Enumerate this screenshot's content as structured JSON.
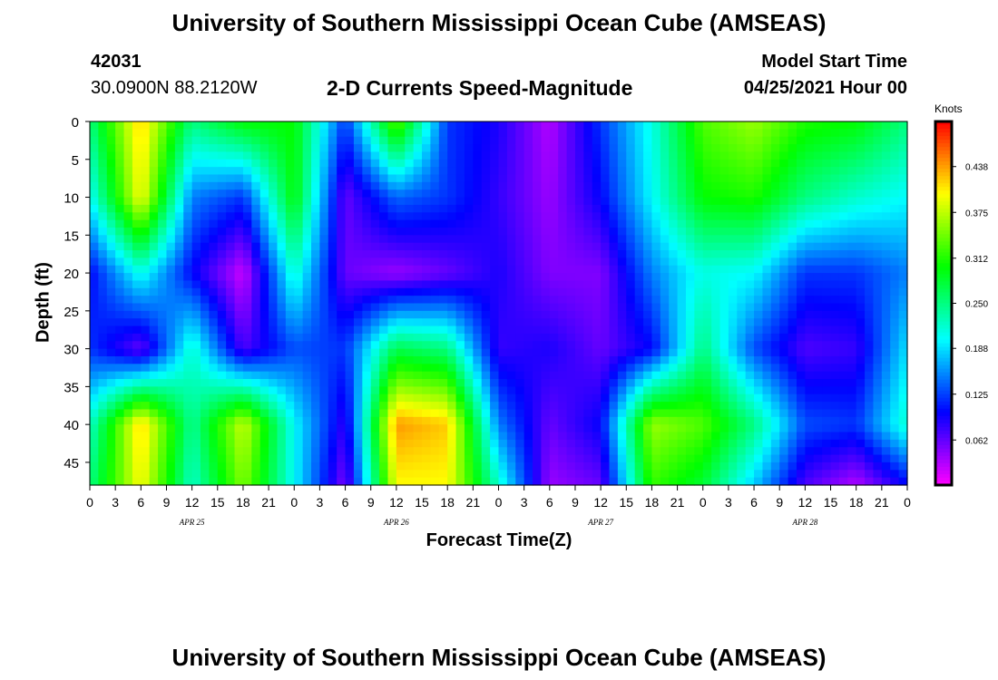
{
  "header": {
    "title": "University of Southern Mississippi Ocean Cube (AMSEAS)",
    "station_id": "42031",
    "coords": "30.0900N  88.2120W",
    "subtitle": "2-D Currents Speed-Magnitude",
    "model_start_label": "Model Start Time",
    "model_start_value": "04/25/2021 Hour 00"
  },
  "footer": {
    "title": "University of Southern Mississippi Ocean Cube (AMSEAS)"
  },
  "colorbar": {
    "unit_label": "Knots",
    "ticks": [
      "0.438",
      "0.375",
      "0.312",
      "0.250",
      "0.188",
      "0.125",
      "0.062"
    ],
    "tick_values": [
      0.438,
      0.375,
      0.312,
      0.25,
      0.188,
      0.125,
      0.062
    ],
    "range": [
      0,
      0.5
    ]
  },
  "chart_data": {
    "type": "heatmap",
    "title": "2-D Currents Speed-Magnitude",
    "xlabel": "Forecast Time(Z)",
    "ylabel": "Depth (ft)",
    "x_tick_labels": [
      "0",
      "3",
      "6",
      "9",
      "12",
      "15",
      "18",
      "21",
      "0",
      "3",
      "6",
      "9",
      "12",
      "15",
      "18",
      "21",
      "0",
      "3",
      "6",
      "9",
      "12",
      "15",
      "18",
      "21",
      "0",
      "3",
      "6",
      "9",
      "12",
      "15",
      "18",
      "21",
      "0"
    ],
    "date_labels": [
      {
        "text": "APR 25",
        "hour": 12
      },
      {
        "text": "APR 26",
        "hour": 36
      },
      {
        "text": "APR 27",
        "hour": 60
      },
      {
        "text": "APR 28",
        "hour": 84
      }
    ],
    "x_range_hours": [
      0,
      96
    ],
    "y_ticks": [
      0,
      5,
      10,
      15,
      20,
      25,
      30,
      35,
      40,
      45
    ],
    "ylim": [
      0,
      48
    ],
    "value_unit": "Knots",
    "hours": [
      0,
      6,
      12,
      18,
      24,
      30,
      36,
      42,
      48,
      54,
      60,
      66,
      72,
      78,
      84,
      90,
      96
    ],
    "depths_ft": [
      0,
      10,
      20,
      30,
      40,
      48
    ],
    "values": [
      [
        0.25,
        0.42,
        0.25,
        0.3,
        0.3,
        0.12,
        0.34,
        0.12,
        0.09,
        0.03,
        0.12,
        0.21,
        0.33,
        0.36,
        0.31,
        0.3,
        0.25
      ],
      [
        0.2,
        0.4,
        0.15,
        0.12,
        0.3,
        0.06,
        0.14,
        0.12,
        0.08,
        0.04,
        0.1,
        0.2,
        0.3,
        0.31,
        0.25,
        0.22,
        0.2
      ],
      [
        0.1,
        0.21,
        0.1,
        0.02,
        0.22,
        0.06,
        0.04,
        0.06,
        0.09,
        0.05,
        0.05,
        0.15,
        0.21,
        0.2,
        0.12,
        0.12,
        0.15
      ],
      [
        0.12,
        0.06,
        0.22,
        0.07,
        0.13,
        0.12,
        0.27,
        0.25,
        0.08,
        0.09,
        0.06,
        0.1,
        0.25,
        0.13,
        0.07,
        0.08,
        0.19
      ],
      [
        0.22,
        0.42,
        0.24,
        0.38,
        0.2,
        0.08,
        0.44,
        0.42,
        0.15,
        0.06,
        0.1,
        0.36,
        0.33,
        0.25,
        0.13,
        0.12,
        0.22
      ],
      [
        0.25,
        0.4,
        0.22,
        0.35,
        0.2,
        0.05,
        0.4,
        0.4,
        0.22,
        0.04,
        0.06,
        0.32,
        0.28,
        0.18,
        0.07,
        0.03,
        0.1
      ]
    ]
  }
}
